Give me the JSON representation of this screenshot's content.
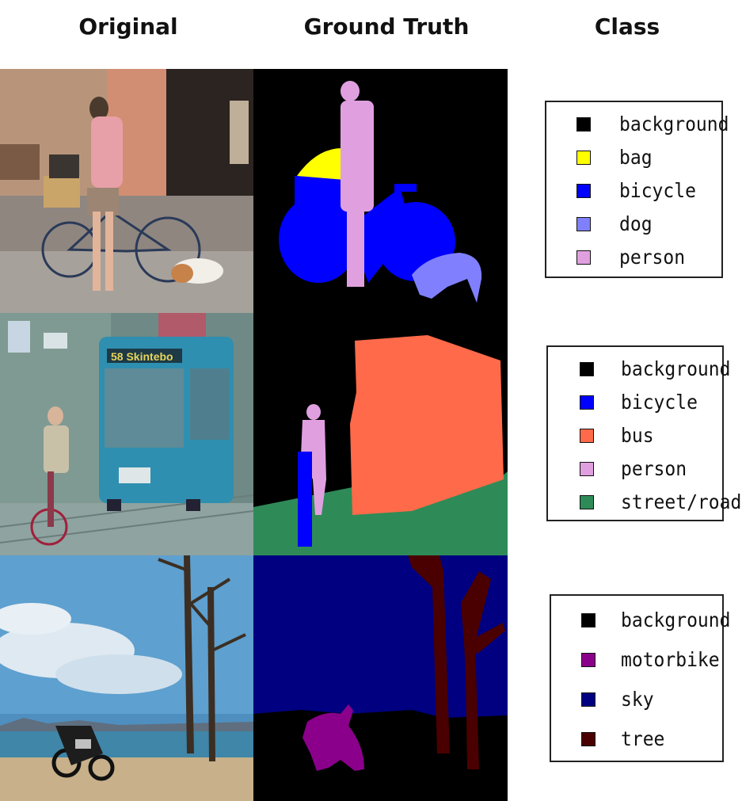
{
  "headers": {
    "original": "Original",
    "ground_truth": "Ground Truth",
    "class": "Class"
  },
  "rows": [
    {
      "legend": [
        {
          "label": "background",
          "color": "#000000"
        },
        {
          "label": "bag",
          "color": "#ffff00"
        },
        {
          "label": "bicycle",
          "color": "#0000ff"
        },
        {
          "label": "dog",
          "color": "#8080ff"
        },
        {
          "label": "person",
          "color": "#e0a0e0"
        }
      ]
    },
    {
      "overlay_sign_text": "58 Skintebo",
      "legend": [
        {
          "label": "background",
          "color": "#000000"
        },
        {
          "label": "bicycle",
          "color": "#0000ff"
        },
        {
          "label": "bus",
          "color": "#ff6a4a"
        },
        {
          "label": "person",
          "color": "#e0a0e0"
        },
        {
          "label": "street/road",
          "color": "#2e8b57"
        }
      ]
    },
    {
      "legend": [
        {
          "label": "background",
          "color": "#000000"
        },
        {
          "label": "motorbike",
          "color": "#8b008b"
        },
        {
          "label": "sky",
          "color": "#000080"
        },
        {
          "label": "tree",
          "color": "#4a0000"
        }
      ]
    }
  ]
}
